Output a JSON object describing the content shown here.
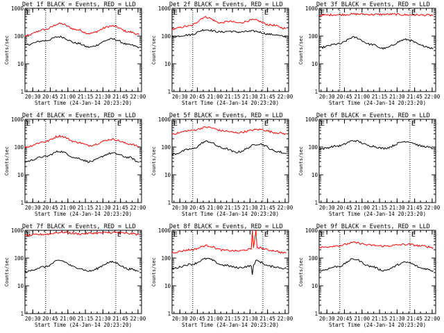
{
  "figure": {
    "common_x_label": "Start Time (24-Jan-14 20:23:20)",
    "y_label": "Counts/sec"
  },
  "chart_data": [
    {
      "type": "line",
      "title": "Det 1f BLACK = Events, RED = LLD",
      "xlabel": "Start Time (24-Jan-14 20:23:20)",
      "ylabel": "Counts/sec",
      "y_scale": "log",
      "ylim": [
        1,
        1000
      ],
      "xlim": [
        "20:23:20",
        "22:03:00"
      ],
      "x_ticks": [
        "20:30",
        "20:45",
        "21:00",
        "21:15",
        "21:30",
        "21:45",
        "22:00"
      ],
      "y_ticks": [
        "1",
        "10",
        "100",
        "1000"
      ],
      "markers": [
        {
          "time": "20:41",
          "label": ""
        },
        {
          "time": "21:41",
          "label": "E"
        }
      ],
      "corner_label": "E",
      "series": [
        {
          "color": "#ff0000",
          "points": [
            [
              "20:23",
              "100"
            ],
            [
              "20:40",
              "170"
            ],
            [
              "20:53",
              "280"
            ],
            [
              "21:08",
              "170"
            ],
            [
              "21:18",
              "125"
            ],
            [
              "21:38",
              "230"
            ],
            [
              "21:53",
              "140"
            ],
            [
              "22:01",
              "115"
            ]
          ]
        },
        {
          "color": "#000000",
          "points": [
            [
              "20:23",
              "48"
            ],
            [
              "20:40",
              "68"
            ],
            [
              "20:53",
              "95"
            ],
            [
              "21:08",
              "55"
            ],
            [
              "21:18",
              "40"
            ],
            [
              "21:38",
              "78"
            ],
            [
              "21:53",
              "48"
            ],
            [
              "22:01",
              "40"
            ]
          ]
        }
      ]
    },
    {
      "type": "line",
      "title": "Det 2f BLACK = Events, RED = LLD",
      "xlabel": "Start Time (24-Jan-14 20:23:20)",
      "ylabel": "Counts/sec",
      "y_scale": "log",
      "ylim": [
        1,
        1000
      ],
      "xlim": [
        "20:23:20",
        "22:03:00"
      ],
      "x_ticks": [
        "20:30",
        "20:45",
        "21:00",
        "21:15",
        "21:30",
        "21:45",
        "22:00"
      ],
      "y_ticks": [
        "1",
        "10",
        "100",
        "1000"
      ],
      "markers": [
        {
          "time": "20:41",
          "label": ""
        },
        {
          "time": "21:41",
          "label": "E"
        }
      ],
      "corner_label": "E",
      "series": [
        {
          "color": "#ff0000",
          "points": [
            [
              "20:23",
              "180"
            ],
            [
              "20:38",
              "230"
            ],
            [
              "20:52",
              "480"
            ],
            [
              "21:05",
              "300"
            ],
            [
              "21:12",
              "340"
            ],
            [
              "21:20",
              "300"
            ],
            [
              "21:33",
              "380"
            ],
            [
              "21:48",
              "250"
            ],
            [
              "22:01",
              "190"
            ]
          ]
        },
        {
          "color": "#000000",
          "points": [
            [
              "20:23",
              "95"
            ],
            [
              "20:38",
              "110"
            ],
            [
              "20:52",
              "170"
            ],
            [
              "21:05",
              "140"
            ],
            [
              "21:12",
              "150"
            ],
            [
              "21:20",
              "140"
            ],
            [
              "21:33",
              "150"
            ],
            [
              "21:48",
              "115"
            ],
            [
              "22:01",
              "95"
            ]
          ]
        }
      ]
    },
    {
      "type": "line",
      "title": "Det 3f BLACK = Events, RED = LLD",
      "xlabel": "Start Time (24-Jan-14 20:23:20)",
      "ylabel": "Counts/sec",
      "y_scale": "log",
      "ylim": [
        1,
        1000
      ],
      "xlim": [
        "20:23:20",
        "22:03:00"
      ],
      "x_ticks": [
        "20:30",
        "20:45",
        "21:00",
        "21:15",
        "21:30",
        "21:45",
        "22:00"
      ],
      "y_ticks": [
        "1",
        "10",
        "100",
        "1000"
      ],
      "markers": [
        {
          "time": "20:41",
          "label": ""
        },
        {
          "time": "21:41",
          "label": "E"
        }
      ],
      "corner_label": "E",
      "series": [
        {
          "color": "#ff0000",
          "points": [
            [
              "20:23",
              "560"
            ],
            [
              "20:40",
              "590"
            ],
            [
              "20:55",
              "620"
            ],
            [
              "21:10",
              "600"
            ],
            [
              "21:25",
              "610"
            ],
            [
              "21:40",
              "580"
            ],
            [
              "21:55",
              "570"
            ],
            [
              "22:01",
              "560"
            ]
          ]
        },
        {
          "color": "#000000",
          "points": [
            [
              "20:23",
              "38"
            ],
            [
              "20:40",
              "52"
            ],
            [
              "20:53",
              "90"
            ],
            [
              "21:08",
              "50"
            ],
            [
              "21:18",
              "36"
            ],
            [
              "21:38",
              "75"
            ],
            [
              "21:53",
              "44"
            ],
            [
              "22:01",
              "36"
            ]
          ]
        }
      ]
    },
    {
      "type": "line",
      "title": "Det 4f BLACK = Events, RED = LLD",
      "xlabel": "Start Time (24-Jan-14 20:23:20)",
      "ylabel": "Counts/sec",
      "y_scale": "log",
      "ylim": [
        1,
        1000
      ],
      "xlim": [
        "20:23:20",
        "22:03:00"
      ],
      "x_ticks": [
        "20:30",
        "20:45",
        "21:00",
        "21:15",
        "21:30",
        "21:45",
        "22:00"
      ],
      "y_ticks": [
        "1",
        "10",
        "100",
        "1000"
      ],
      "markers": [
        {
          "time": "20:41",
          "label": ""
        },
        {
          "time": "21:41",
          "label": "E"
        }
      ],
      "corner_label": "E",
      "series": [
        {
          "color": "#ff0000",
          "points": [
            [
              "20:23",
              "100"
            ],
            [
              "20:40",
              "155"
            ],
            [
              "20:53",
              "250"
            ],
            [
              "21:08",
              "150"
            ],
            [
              "21:18",
              "115"
            ],
            [
              "21:38",
              "190"
            ],
            [
              "21:53",
              "130"
            ],
            [
              "22:01",
              "105"
            ]
          ]
        },
        {
          "color": "#000000",
          "points": [
            [
              "20:23",
              "30"
            ],
            [
              "20:40",
              "45"
            ],
            [
              "20:53",
              "70"
            ],
            [
              "21:08",
              "40"
            ],
            [
              "21:18",
              "30"
            ],
            [
              "21:38",
              "60"
            ],
            [
              "21:53",
              "42"
            ],
            [
              "22:01",
              "28"
            ]
          ]
        }
      ]
    },
    {
      "type": "line",
      "title": "Det 5f BLACK = Events, RED = LLD",
      "xlabel": "Start Time (24-Jan-14 20:23:20)",
      "ylabel": "Counts/sec",
      "y_scale": "log",
      "ylim": [
        1,
        1000
      ],
      "xlim": [
        "20:23:20",
        "22:03:00"
      ],
      "x_ticks": [
        "20:30",
        "20:45",
        "21:00",
        "21:15",
        "21:30",
        "21:45",
        "22:00"
      ],
      "y_ticks": [
        "1",
        "10",
        "100",
        "1000"
      ],
      "markers": [
        {
          "time": "20:41",
          "label": ""
        },
        {
          "time": "21:41",
          "label": "E"
        }
      ],
      "corner_label": "E",
      "series": [
        {
          "color": "#ff0000",
          "points": [
            [
              "20:23",
              "300"
            ],
            [
              "20:40",
              "400"
            ],
            [
              "20:53",
              "520"
            ],
            [
              "21:08",
              "380"
            ],
            [
              "21:18",
              "330"
            ],
            [
              "21:38",
              "430"
            ],
            [
              "21:53",
              "330"
            ],
            [
              "22:01",
              "300"
            ]
          ]
        },
        {
          "color": "#000000",
          "points": [
            [
              "20:23",
              "55"
            ],
            [
              "20:40",
              "85"
            ],
            [
              "20:53",
              "160"
            ],
            [
              "21:08",
              "90"
            ],
            [
              "21:18",
              "65"
            ],
            [
              "21:38",
              "130"
            ],
            [
              "21:53",
              "70"
            ],
            [
              "22:01",
              "58"
            ]
          ]
        }
      ]
    },
    {
      "type": "line",
      "title": "Det 6f BLACK = Events, RED = LLD",
      "xlabel": "Start Time (24-Jan-14 20:23:20)",
      "ylabel": "Counts/sec",
      "y_scale": "log",
      "ylim": [
        1,
        1000
      ],
      "xlim": [
        "20:23:20",
        "22:03:00"
      ],
      "x_ticks": [
        "20:30",
        "20:45",
        "21:00",
        "21:15",
        "21:30",
        "21:45",
        "22:00"
      ],
      "y_ticks": [
        "1",
        "10",
        "100",
        "1000"
      ],
      "markers": [
        {
          "time": "21:41",
          "label": "E"
        }
      ],
      "corner_label": "E",
      "series": [
        {
          "color": "#000000",
          "points": [
            [
              "20:23",
              "85"
            ],
            [
              "20:40",
              "110"
            ],
            [
              "20:53",
              "170"
            ],
            [
              "21:08",
              "110"
            ],
            [
              "21:18",
              "90"
            ],
            [
              "21:38",
              "160"
            ],
            [
              "21:53",
              "105"
            ],
            [
              "22:01",
              "90"
            ]
          ]
        }
      ]
    },
    {
      "type": "line",
      "title": "Det 7f BLACK = Events, RED = LLD",
      "xlabel": "Start Time (24-Jan-14 20:23:20)",
      "ylabel": "Counts/sec",
      "y_scale": "log",
      "ylim": [
        1,
        1000
      ],
      "xlim": [
        "20:23:20",
        "22:03:00"
      ],
      "x_ticks": [
        "20:30",
        "20:45",
        "21:00",
        "21:15",
        "21:30",
        "21:45",
        "22:00"
      ],
      "y_ticks": [
        "1",
        "10",
        "100",
        "1000"
      ],
      "markers": [
        {
          "time": "20:41",
          "label": ""
        },
        {
          "time": "21:41",
          "label": "E"
        }
      ],
      "corner_label": "E",
      "series": [
        {
          "color": "#ff0000",
          "points": [
            [
              "20:23",
              "650"
            ],
            [
              "20:40",
              "720"
            ],
            [
              "20:55",
              "850"
            ],
            [
              "21:10",
              "750"
            ],
            [
              "21:25",
              "800"
            ],
            [
              "21:40",
              "830"
            ],
            [
              "21:55",
              "760"
            ],
            [
              "22:01",
              "700"
            ]
          ]
        },
        {
          "color": "#000000",
          "points": [
            [
              "20:23",
              "32"
            ],
            [
              "20:40",
              "48"
            ],
            [
              "20:53",
              "82"
            ],
            [
              "21:08",
              "45"
            ],
            [
              "21:18",
              "34"
            ],
            [
              "21:38",
              "72"
            ],
            [
              "21:53",
              "40"
            ],
            [
              "22:01",
              "34"
            ]
          ]
        }
      ]
    },
    {
      "type": "line",
      "title": "Det 8f BLACK = Events, RED = LLD",
      "xlabel": "Start Time (24-Jan-14 20:23:20)",
      "ylabel": "Counts/sec",
      "y_scale": "log",
      "ylim": [
        1,
        1000
      ],
      "xlim": [
        "20:23:20",
        "22:03:00"
      ],
      "x_ticks": [
        "20:30",
        "20:45",
        "21:00",
        "21:15",
        "21:30",
        "21:45",
        "22:00"
      ],
      "y_ticks": [
        "1",
        "10",
        "100",
        "1000"
      ],
      "markers": [
        {
          "time": "20:41",
          "label": ""
        },
        {
          "time": "21:41",
          "label": "E"
        }
      ],
      "corner_label": "E",
      "series": [
        {
          "color": "#ff0000",
          "points": [
            [
              "20:23",
              "160"
            ],
            [
              "20:40",
              "200"
            ],
            [
              "20:53",
              "280"
            ],
            [
              "21:08",
              "190"
            ],
            [
              "21:20",
              "180"
            ],
            [
              "21:31",
              "210"
            ],
            [
              "21:32",
              "1000"
            ],
            [
              "21:33",
              "220"
            ],
            [
              "21:35",
              "1000"
            ],
            [
              "21:36",
              "240"
            ],
            [
              "21:48",
              "190"
            ],
            [
              "22:01",
              "150"
            ]
          ]
        },
        {
          "color": "#000000",
          "points": [
            [
              "20:23",
              "42"
            ],
            [
              "20:40",
              "60"
            ],
            [
              "20:53",
              "95"
            ],
            [
              "21:08",
              "55"
            ],
            [
              "21:20",
              "45"
            ],
            [
              "21:31",
              "52"
            ],
            [
              "21:32",
              "25"
            ],
            [
              "21:33",
              "55"
            ],
            [
              "21:35",
              "80"
            ],
            [
              "21:48",
              "50"
            ],
            [
              "22:01",
              "42"
            ]
          ]
        }
      ]
    },
    {
      "type": "line",
      "title": "Det 9f BLACK = Events, RED = LLD",
      "xlabel": "Start Time (24-Jan-14 20:23:20)",
      "ylabel": "Counts/sec",
      "y_scale": "log",
      "ylim": [
        1,
        1000
      ],
      "xlim": [
        "20:23:20",
        "22:03:00"
      ],
      "x_ticks": [
        "20:30",
        "20:45",
        "21:00",
        "21:15",
        "21:30",
        "21:45",
        "22:00"
      ],
      "y_ticks": [
        "1",
        "10",
        "100",
        "1000"
      ],
      "markers": [
        {
          "time": "20:41",
          "label": ""
        },
        {
          "time": "21:41",
          "label": "E"
        }
      ],
      "corner_label": "E",
      "series": [
        {
          "color": "#ff0000",
          "points": [
            [
              "20:23",
              "240"
            ],
            [
              "20:40",
              "280"
            ],
            [
              "20:53",
              "360"
            ],
            [
              "21:08",
              "290"
            ],
            [
              "21:18",
              "270"
            ],
            [
              "21:38",
              "310"
            ],
            [
              "21:53",
              "270"
            ],
            [
              "22:01",
              "240"
            ]
          ]
        },
        {
          "color": "#000000",
          "points": [
            [
              "20:23",
              "35"
            ],
            [
              "20:40",
              "50"
            ],
            [
              "20:53",
              "92"
            ],
            [
              "21:08",
              "50"
            ],
            [
              "21:18",
              "36"
            ],
            [
              "21:38",
              "70"
            ],
            [
              "21:53",
              "42"
            ],
            [
              "22:01",
              "35"
            ]
          ]
        }
      ]
    }
  ]
}
